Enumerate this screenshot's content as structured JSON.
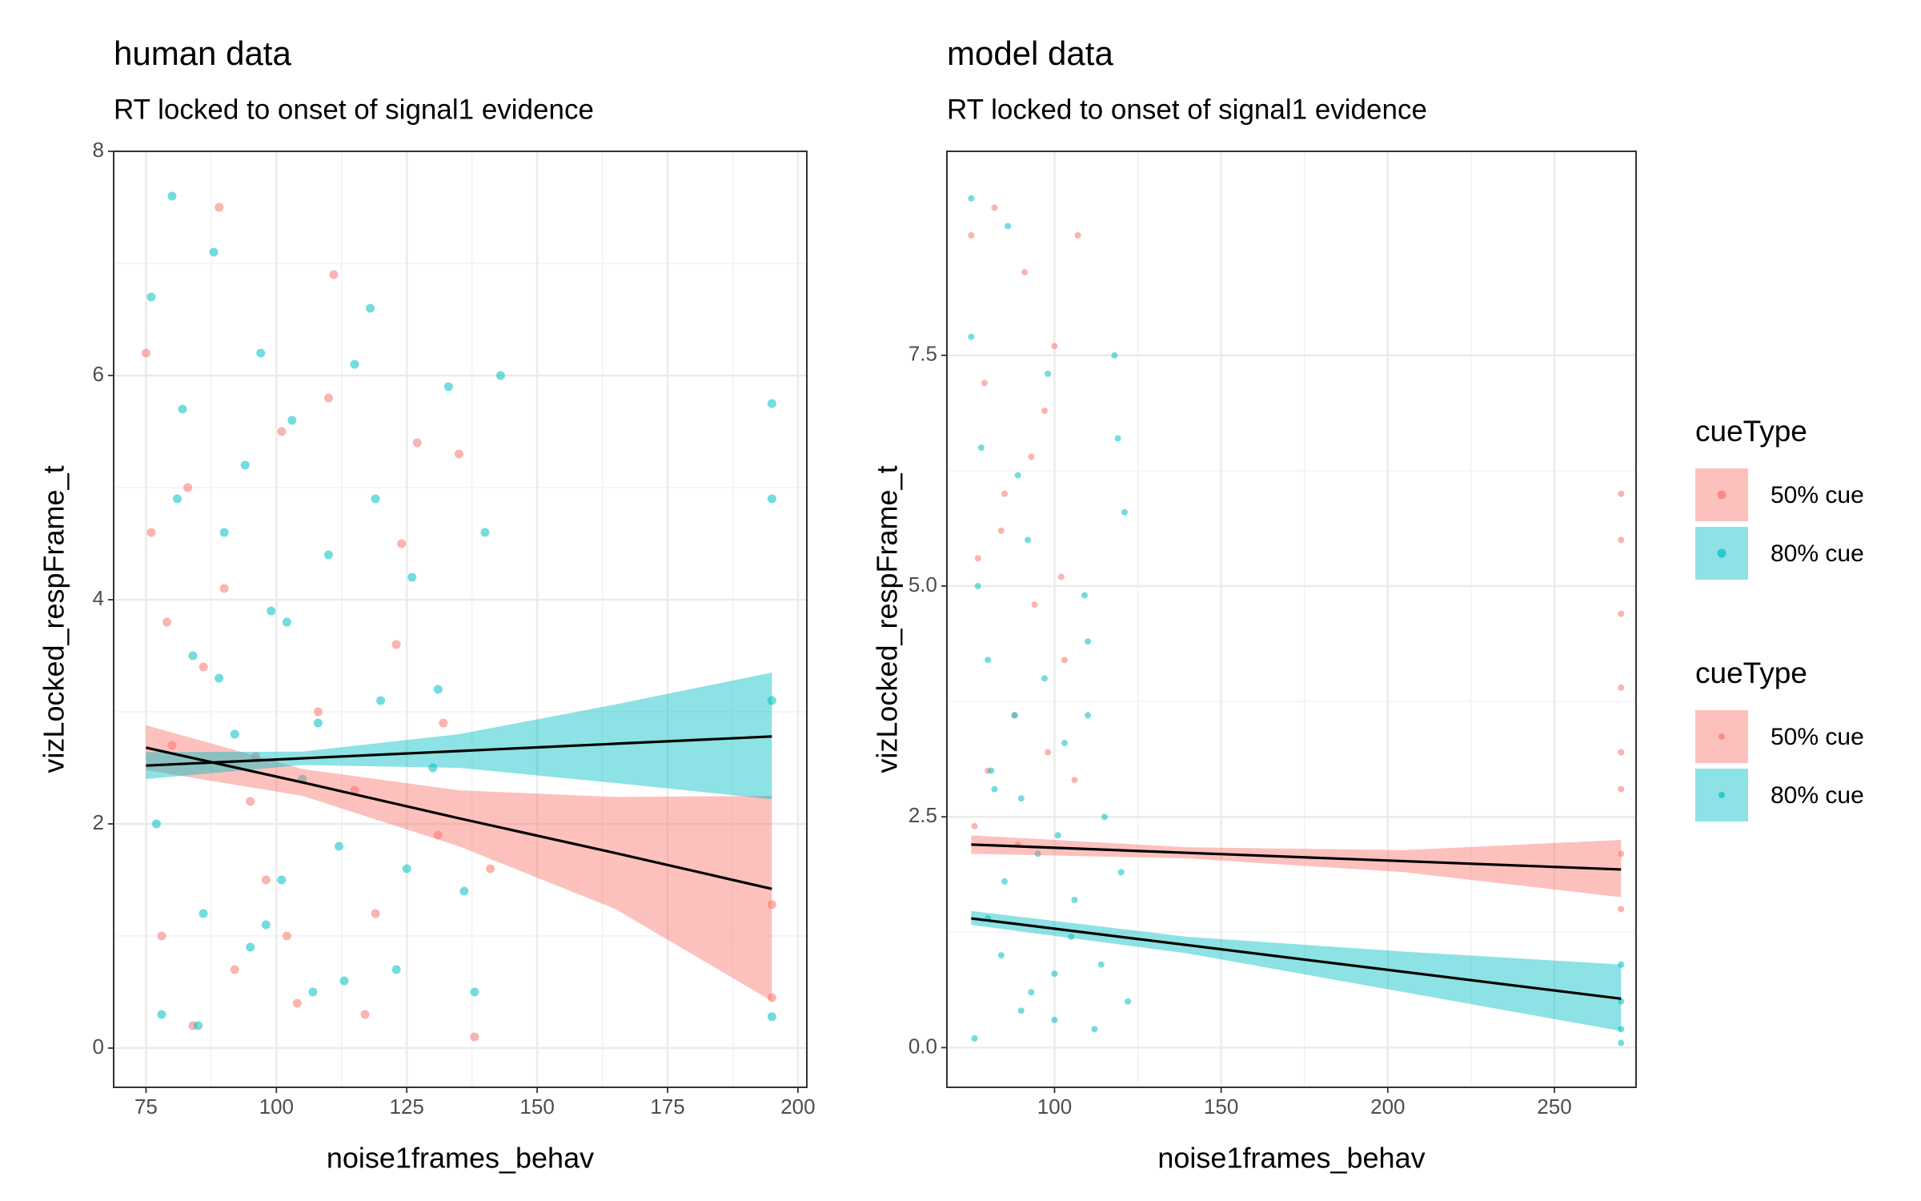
{
  "chart_data": [
    {
      "type": "scatter",
      "title": "human data",
      "subtitle": "RT locked to onset of signal1 evidence",
      "xlabel": "noise1frames_behav",
      "ylabel": "vizLocked_respFrame_t",
      "xlim": [
        68.8,
        201.7
      ],
      "ylim": [
        -0.35,
        8.0
      ],
      "xticks": [
        75,
        100,
        125,
        150,
        175,
        200
      ],
      "yticks": [
        0,
        2,
        4,
        6,
        8
      ],
      "grid": true,
      "series": [
        {
          "color": "#F8766D",
          "x": [
            75,
            76,
            78,
            80,
            83,
            86,
            89,
            92,
            95,
            98,
            101,
            104,
            108,
            111,
            115,
            119,
            123,
            127,
            131,
            135,
            141,
            79,
            84,
            90,
            96,
            102,
            110,
            117,
            124,
            132,
            138,
            195,
            195
          ],
          "values": [
            6.2,
            4.6,
            1.0,
            2.7,
            5.0,
            3.4,
            7.5,
            0.7,
            2.2,
            1.5,
            5.5,
            0.4,
            3.0,
            6.9,
            2.3,
            1.2,
            3.6,
            5.4,
            1.9,
            5.3,
            1.6,
            3.8,
            0.2,
            4.1,
            2.6,
            1.0,
            5.8,
            0.3,
            4.5,
            2.9,
            0.1,
            1.28,
            0.45
          ]
        },
        {
          "color": "#00BFC4",
          "x": [
            76,
            78,
            80,
            82,
            84,
            86,
            88,
            90,
            92,
            95,
            97,
            99,
            101,
            103,
            105,
            107,
            110,
            112,
            115,
            118,
            120,
            123,
            126,
            130,
            133,
            136,
            140,
            143,
            77,
            81,
            85,
            89,
            94,
            98,
            102,
            108,
            113,
            119,
            125,
            131,
            138,
            195,
            195,
            195,
            195
          ],
          "values": [
            6.7,
            0.3,
            7.6,
            5.7,
            3.5,
            1.2,
            7.1,
            4.6,
            2.8,
            0.9,
            6.2,
            3.9,
            1.5,
            5.6,
            2.4,
            0.5,
            4.4,
            1.8,
            6.1,
            6.6,
            3.1,
            0.7,
            4.2,
            2.5,
            5.9,
            1.4,
            4.6,
            6.0,
            2.0,
            4.9,
            0.2,
            3.3,
            5.2,
            1.1,
            3.8,
            2.9,
            0.6,
            4.9,
            1.6,
            3.2,
            0.5,
            5.75,
            4.9,
            3.1,
            0.28
          ]
        }
      ],
      "fits": [
        {
          "color": "#F8766D",
          "x": [
            75,
            105,
            135,
            165,
            195
          ],
          "values": [
            2.68,
            2.37,
            2.05,
            1.74,
            1.42
          ],
          "lower": [
            2.48,
            2.25,
            1.8,
            1.24,
            0.42
          ],
          "upper": [
            2.88,
            2.49,
            2.3,
            2.24,
            2.25
          ]
        },
        {
          "color": "#00BFC4",
          "x": [
            75,
            105,
            135,
            165,
            195
          ],
          "values": [
            2.52,
            2.585,
            2.65,
            2.715,
            2.78
          ],
          "lower": [
            2.4,
            2.525,
            2.5,
            2.365,
            2.22
          ],
          "upper": [
            2.64,
            2.645,
            2.8,
            3.065,
            3.35
          ]
        }
      ]
    },
    {
      "type": "scatter",
      "title": "model data",
      "subtitle": "RT locked to onset of signal1 evidence",
      "xlabel": "noise1frames_behav",
      "ylabel": "vizLocked_respFrame_t",
      "xlim": [
        67.7,
        274.5
      ],
      "ylim": [
        -0.43,
        9.71
      ],
      "xticks": [
        100,
        150,
        200,
        250
      ],
      "yticks": [
        {
          "value": 0,
          "label": "0.0"
        },
        {
          "value": 2.5,
          "label": "2.5"
        },
        {
          "value": 5,
          "label": "5.0"
        },
        {
          "value": 7.5,
          "label": "7.5"
        }
      ],
      "grid": true,
      "series": [
        {
          "color": "#F8766D",
          "x": [
            75,
            77,
            79,
            82,
            85,
            88,
            91,
            94,
            97,
            100,
            103,
            107,
            76,
            80,
            84,
            89,
            93,
            98,
            102,
            106,
            270,
            270,
            270,
            270,
            270,
            270,
            270,
            270
          ],
          "values": [
            8.8,
            5.3,
            7.2,
            9.1,
            6.0,
            3.6,
            8.4,
            4.8,
            6.9,
            7.6,
            4.2,
            8.8,
            2.4,
            3.0,
            5.6,
            2.2,
            6.4,
            3.2,
            5.1,
            2.9,
            6.0,
            5.5,
            4.7,
            3.9,
            3.2,
            2.8,
            2.1,
            1.5
          ]
        },
        {
          "color": "#00BFC4",
          "x": [
            75,
            76,
            78,
            80,
            82,
            84,
            86,
            88,
            90,
            92,
            95,
            98,
            100,
            103,
            106,
            109,
            112,
            115,
            118,
            121,
            122,
            77,
            81,
            85,
            89,
            93,
            97,
            101,
            105,
            110,
            114,
            119,
            75,
            80,
            90,
            100,
            110,
            120,
            270,
            270,
            270,
            270
          ],
          "values": [
            9.2,
            0.1,
            6.5,
            4.2,
            2.8,
            1.0,
            8.9,
            3.6,
            0.4,
            5.5,
            2.1,
            7.3,
            0.8,
            3.3,
            1.6,
            4.9,
            0.2,
            2.5,
            7.5,
            5.8,
            0.5,
            5.0,
            3.0,
            1.8,
            6.2,
            0.6,
            4.0,
            2.3,
            1.2,
            3.6,
            0.9,
            6.6,
            7.7,
            1.4,
            2.7,
            0.3,
            4.4,
            1.9,
            0.9,
            0.5,
            0.2,
            0.05
          ]
        }
      ],
      "fits": [
        {
          "color": "#F8766D",
          "x": [
            75,
            140,
            205,
            270
          ],
          "values": [
            2.2,
            2.11,
            2.02,
            1.93
          ],
          "lower": [
            2.1,
            2.05,
            1.9,
            1.63
          ],
          "upper": [
            2.3,
            2.17,
            2.14,
            2.25
          ]
        },
        {
          "color": "#00BFC4",
          "x": [
            75,
            140,
            205,
            270
          ],
          "values": [
            1.4,
            1.11,
            0.82,
            0.53
          ],
          "lower": [
            1.33,
            1.02,
            0.6,
            0.18
          ],
          "upper": [
            1.48,
            1.2,
            1.04,
            0.9
          ]
        }
      ]
    }
  ],
  "legends": [
    {
      "title": "cueType",
      "items": [
        {
          "name": "50% cue",
          "color": "#F8766D"
        },
        {
          "name": "80% cue",
          "color": "#00BFC4"
        }
      ]
    },
    {
      "title": "cueType",
      "items": [
        {
          "name": "50% cue",
          "color": "#F8766D"
        },
        {
          "name": "80% cue",
          "color": "#00BFC4"
        }
      ]
    }
  ]
}
